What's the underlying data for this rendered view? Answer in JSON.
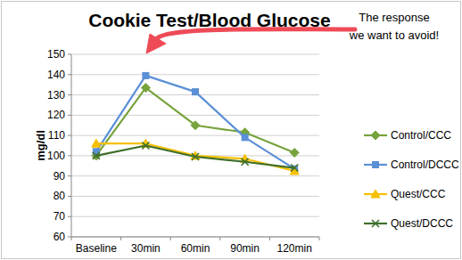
{
  "chart_data": {
    "type": "line",
    "title": "Cookie Test/Blood Glucose",
    "y_label": "mg/dl",
    "annotation": [
      "The response",
      "we want to avoid!"
    ],
    "categories": [
      "Baseline",
      "30min",
      "60min",
      "90min",
      "120min"
    ],
    "series": [
      {
        "name": "Control/CCC",
        "color": "#77a33c",
        "marker": "diamond",
        "values": [
          100,
          133.5,
          115,
          111.5,
          101.5
        ]
      },
      {
        "name": "Control/DCCC",
        "color": "#5b8fd6",
        "marker": "square",
        "values": [
          102,
          139.5,
          131.5,
          109,
          93.5
        ]
      },
      {
        "name": "Quest/CCC",
        "color": "#f5c000",
        "marker": "triangle",
        "values": [
          106,
          106,
          100,
          98.5,
          92.5
        ]
      },
      {
        "name": "Quest/DCCC",
        "color": "#3f6f2a",
        "marker": "x",
        "values": [
          100,
          105,
          99.5,
          97,
          94
        ]
      }
    ],
    "ylim": [
      60,
      150
    ],
    "yticks": [
      60,
      70,
      80,
      90,
      100,
      110,
      120,
      130,
      140,
      150
    ],
    "grid": true,
    "legend": "right"
  }
}
